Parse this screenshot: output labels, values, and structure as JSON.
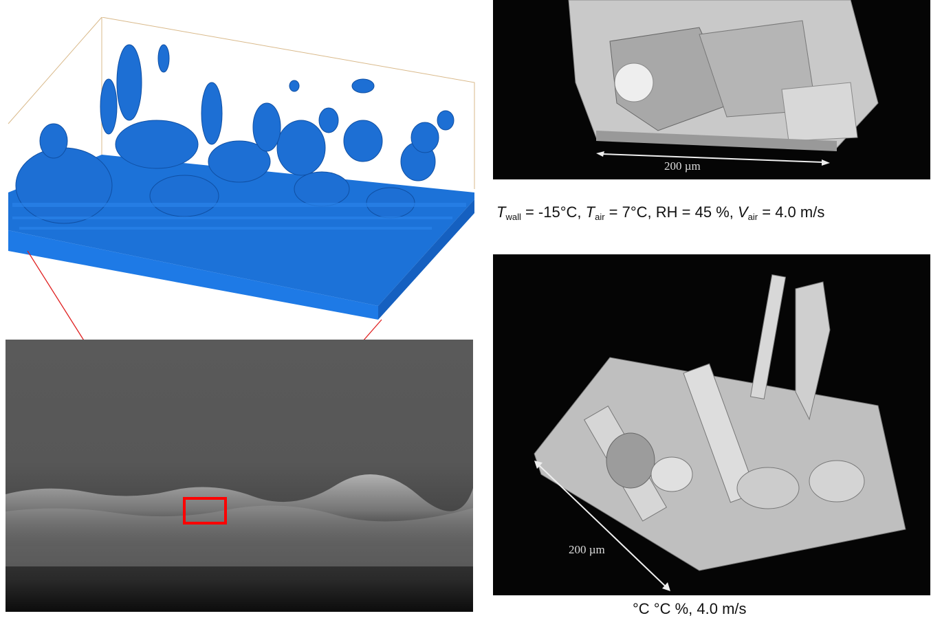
{
  "top_render": {
    "scale_label": "200 µm"
  },
  "caption_1": {
    "T": "T",
    "wall": "wall",
    "eq1": " = -15°C, ",
    "T2": "T",
    "air": "air",
    "eq2": " = 7°C, RH = 45 %, ",
    "V": "V",
    "air2": "air",
    "eq3": " = 4.0 m/s"
  },
  "bottom_render": {
    "scale_label": "200 µm"
  },
  "caption_2_partial": "°C        °C                 %,              4.0 m/s",
  "colors": {
    "blue_render": "#1a6fd6",
    "highlight_box": "#ff0000",
    "connector": "#e02020"
  }
}
